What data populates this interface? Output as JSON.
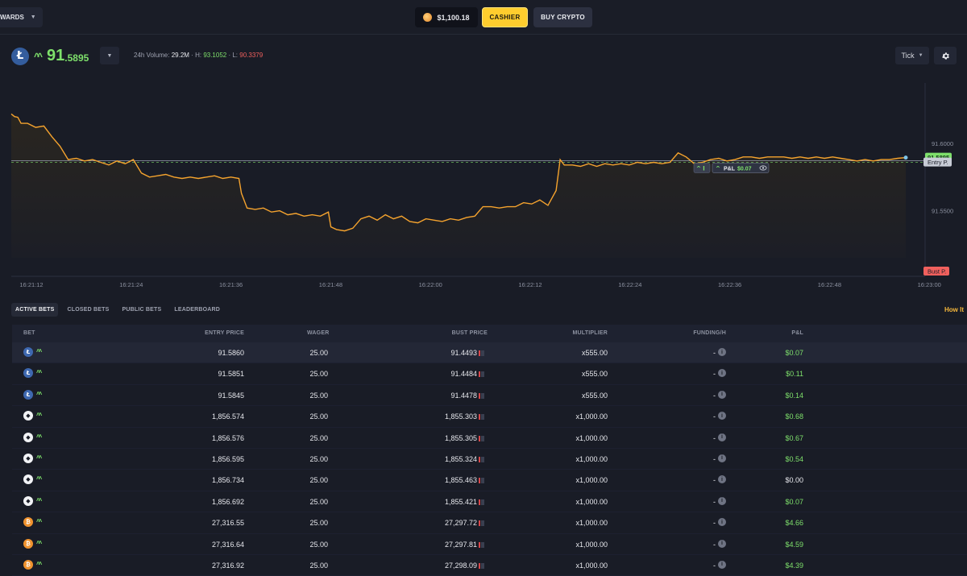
{
  "topbar": {
    "rewards_label": "WARDS",
    "balance": "$1,100.18",
    "cashier_label": "CASHIER",
    "buy_crypto_label": "BUY CRYPTO"
  },
  "ticker": {
    "symbol_icon": "litecoin-icon",
    "price_int": "91",
    "price_dec": ".5895",
    "volume_label": "24h Volume:",
    "volume": "29.2M",
    "high_label": "· H:",
    "high": "93.1052",
    "low_label": "· L:",
    "low": "90.3379",
    "interval": "Tick"
  },
  "chart_data": {
    "type": "line",
    "x_ticks": [
      "16:21:12",
      "16:21:24",
      "16:21:36",
      "16:21:48",
      "16:22:00",
      "16:22:12",
      "16:22:24",
      "16:22:36",
      "16:22:48",
      "16:23:00"
    ],
    "y_ticks": [
      "91.6000",
      "91.5500"
    ],
    "ylim": [
      91.515,
      91.645
    ],
    "entry_price": 91.586,
    "current_price": 91.5895,
    "current_price_label": "91.5895",
    "entry_label": "Entry P.",
    "bust_label": "Bust P.",
    "pnl_tag": {
      "prefix": "P&L",
      "value": "$0.07"
    },
    "series": [
      {
        "color": "#f5a32e",
        "points": [
          [
            0,
            91.622
          ],
          [
            0.4,
            91.62
          ],
          [
            0.8,
            91.6195
          ],
          [
            1.2,
            91.615
          ],
          [
            2,
            91.615
          ],
          [
            3,
            91.612
          ],
          [
            4,
            91.613
          ],
          [
            5,
            91.605
          ],
          [
            6,
            91.598
          ],
          [
            7,
            91.588
          ],
          [
            8,
            91.589
          ],
          [
            9,
            91.587
          ],
          [
            10,
            91.588
          ],
          [
            11,
            91.586
          ],
          [
            12,
            91.584
          ],
          [
            13,
            91.587
          ],
          [
            14,
            91.585
          ],
          [
            15,
            91.588
          ],
          [
            16,
            91.578
          ],
          [
            17,
            91.575
          ],
          [
            18,
            91.576
          ],
          [
            19,
            91.577
          ],
          [
            20,
            91.575
          ],
          [
            21,
            91.574
          ],
          [
            22,
            91.575
          ],
          [
            23,
            91.574
          ],
          [
            24,
            91.575
          ],
          [
            25,
            91.576
          ],
          [
            26,
            91.574
          ],
          [
            27,
            91.575
          ],
          [
            28,
            91.574
          ],
          [
            28.3,
            91.563
          ],
          [
            29,
            91.552
          ],
          [
            30,
            91.551
          ],
          [
            31,
            91.552
          ],
          [
            32,
            91.549
          ],
          [
            33,
            91.55
          ],
          [
            34,
            91.547
          ],
          [
            35,
            91.548
          ],
          [
            36,
            91.546
          ],
          [
            37,
            91.547
          ],
          [
            38,
            91.546
          ],
          [
            39,
            91.549
          ],
          [
            39.3,
            91.538
          ],
          [
            40,
            91.536
          ],
          [
            41,
            91.535
          ],
          [
            42,
            91.537
          ],
          [
            43,
            91.544
          ],
          [
            44,
            91.546
          ],
          [
            45,
            91.543
          ],
          [
            46,
            91.547
          ],
          [
            47,
            91.544
          ],
          [
            48,
            91.546
          ],
          [
            49,
            91.542
          ],
          [
            50,
            91.541
          ],
          [
            51,
            91.544
          ],
          [
            52,
            91.543
          ],
          [
            53,
            91.542
          ],
          [
            54,
            91.544
          ],
          [
            55,
            91.543
          ],
          [
            56,
            91.545
          ],
          [
            57,
            91.546
          ],
          [
            58,
            91.553
          ],
          [
            59,
            91.553
          ],
          [
            60,
            91.552
          ],
          [
            61,
            91.553
          ],
          [
            62,
            91.553
          ],
          [
            63,
            91.556
          ],
          [
            64,
            91.555
          ],
          [
            65,
            91.558
          ],
          [
            66,
            91.554
          ],
          [
            67,
            91.565
          ],
          [
            67.5,
            91.588
          ],
          [
            68,
            91.584
          ],
          [
            69,
            91.584
          ],
          [
            70,
            91.583
          ],
          [
            71,
            91.585
          ],
          [
            72,
            91.583
          ],
          [
            73,
            91.585
          ],
          [
            74,
            91.584
          ],
          [
            75,
            91.585
          ],
          [
            76,
            91.584
          ],
          [
            77,
            91.586
          ],
          [
            78,
            91.585
          ],
          [
            79,
            91.586
          ],
          [
            80,
            91.585
          ],
          [
            81,
            91.586
          ],
          [
            82,
            91.593
          ],
          [
            83,
            91.59
          ],
          [
            84,
            91.585
          ],
          [
            85,
            91.586
          ],
          [
            86,
            91.588
          ],
          [
            87,
            91.589
          ],
          [
            88,
            91.587
          ],
          [
            89,
            91.588
          ],
          [
            90,
            91.59
          ],
          [
            91,
            91.59
          ],
          [
            92,
            91.589
          ],
          [
            93,
            91.59
          ],
          [
            94,
            91.59
          ],
          [
            95,
            91.59
          ],
          [
            96,
            91.589
          ],
          [
            97,
            91.59
          ],
          [
            98,
            91.589
          ],
          [
            99,
            91.59
          ],
          [
            100,
            91.589
          ],
          [
            101,
            91.59
          ],
          [
            102,
            91.589
          ],
          [
            103,
            91.588
          ],
          [
            104,
            91.587
          ],
          [
            105,
            91.588
          ],
          [
            106,
            91.587
          ],
          [
            107,
            91.588
          ],
          [
            108,
            91.588
          ],
          [
            109,
            91.589
          ],
          [
            110,
            91.5895
          ]
        ]
      }
    ]
  },
  "tabs": [
    "ACTIVE BETS",
    "CLOSED BETS",
    "PUBLIC BETS",
    "LEADERBOARD"
  ],
  "how_it_label": "How It",
  "table": {
    "headers": {
      "bet": "BET",
      "entry": "ENTRY PRICE",
      "wager": "WAGER",
      "bust": "BUST PRICE",
      "mult": "MULTIPLIER",
      "funding": "FUNDING/H",
      "pnl": "P&L"
    },
    "rows": [
      {
        "coin": "ltc",
        "entry": "91.5860",
        "wager": "25.00",
        "bust": "91.4493",
        "mult": "x555.00",
        "funding": "-",
        "pnl": "$0.07"
      },
      {
        "coin": "ltc",
        "entry": "91.5851",
        "wager": "25.00",
        "bust": "91.4484",
        "mult": "x555.00",
        "funding": "-",
        "pnl": "$0.11"
      },
      {
        "coin": "ltc",
        "entry": "91.5845",
        "wager": "25.00",
        "bust": "91.4478",
        "mult": "x555.00",
        "funding": "-",
        "pnl": "$0.14"
      },
      {
        "coin": "eth",
        "entry": "1,856.574",
        "wager": "25.00",
        "bust": "1,855.303",
        "mult": "x1,000.00",
        "funding": "-",
        "pnl": "$0.68"
      },
      {
        "coin": "eth",
        "entry": "1,856.576",
        "wager": "25.00",
        "bust": "1,855.305",
        "mult": "x1,000.00",
        "funding": "-",
        "pnl": "$0.67"
      },
      {
        "coin": "eth",
        "entry": "1,856.595",
        "wager": "25.00",
        "bust": "1,855.324",
        "mult": "x1,000.00",
        "funding": "-",
        "pnl": "$0.54"
      },
      {
        "coin": "eth",
        "entry": "1,856.734",
        "wager": "25.00",
        "bust": "1,855.463",
        "mult": "x1,000.00",
        "funding": "-",
        "pnl": "$0.00"
      },
      {
        "coin": "eth",
        "entry": "1,856.692",
        "wager": "25.00",
        "bust": "1,855.421",
        "mult": "x1,000.00",
        "funding": "-",
        "pnl": "$0.07"
      },
      {
        "coin": "btc",
        "entry": "27,316.55",
        "wager": "25.00",
        "bust": "27,297.72",
        "mult": "x1,000.00",
        "funding": "-",
        "pnl": "$4.66"
      },
      {
        "coin": "btc",
        "entry": "27,316.64",
        "wager": "25.00",
        "bust": "27,297.81",
        "mult": "x1,000.00",
        "funding": "-",
        "pnl": "$4.59"
      },
      {
        "coin": "btc",
        "entry": "27,316.92",
        "wager": "25.00",
        "bust": "27,298.09",
        "mult": "x1,000.00",
        "funding": "-",
        "pnl": "$4.39"
      }
    ]
  },
  "colors": {
    "accent": "#ffcd2e",
    "up": "#7ee06b",
    "down": "#f0605d",
    "line": "#f5a32e"
  }
}
